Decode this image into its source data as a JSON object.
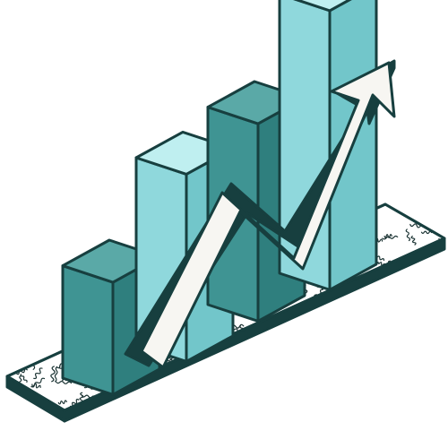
{
  "illustration": {
    "subject": "isometric-growth-bar-chart",
    "bar_count": 4,
    "bar_levels": [
      0.33,
      0.55,
      0.58,
      0.82
    ],
    "arrow_direction": "up-right"
  },
  "colors": {
    "outline": "#173f3f",
    "bar_front_dark": "#3f9493",
    "bar_side_dark": "#2f7f7e",
    "bar_top_dark": "#5aa9a7",
    "bar_front_light": "#8fd8dc",
    "bar_side_light": "#72c6ca",
    "bar_top_light": "#bfeff0",
    "base_top": "#ffffff",
    "base_side": "#173f3f",
    "squiggle": "#1c3434",
    "arrow_fill": "#f7f6f2",
    "arrow_shadow": "#173f3f"
  }
}
